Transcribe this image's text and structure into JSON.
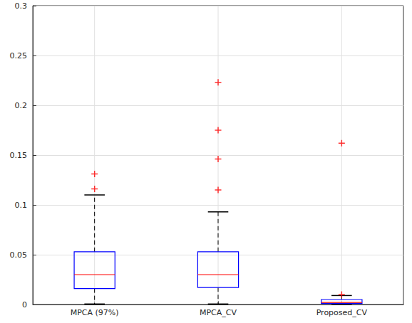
{
  "chart_data": {
    "type": "boxplot",
    "categories": [
      "MPCA (97%)",
      "MPCA_CV",
      "Proposed_CV"
    ],
    "boxes": [
      {
        "min": 0.0005,
        "q1": 0.016,
        "median": 0.03,
        "q3": 0.053,
        "max": 0.11,
        "outliers": [
          0.116,
          0.131
        ]
      },
      {
        "min": 0.0005,
        "q1": 0.017,
        "median": 0.03,
        "q3": 0.053,
        "max": 0.093,
        "outliers": [
          0.115,
          0.146,
          0.175,
          0.223
        ]
      },
      {
        "min": 0.0005,
        "q1": 0.001,
        "median": 0.002,
        "q3": 0.005,
        "max": 0.009,
        "outliers": [
          0.01,
          0.162
        ]
      }
    ],
    "color": "#0000ff",
    "marker": "plus",
    "ylim": [
      0,
      0.3
    ],
    "yticks": [
      0,
      0.05,
      0.1,
      0.15,
      0.2,
      0.25,
      0.3
    ],
    "grid": true
  }
}
